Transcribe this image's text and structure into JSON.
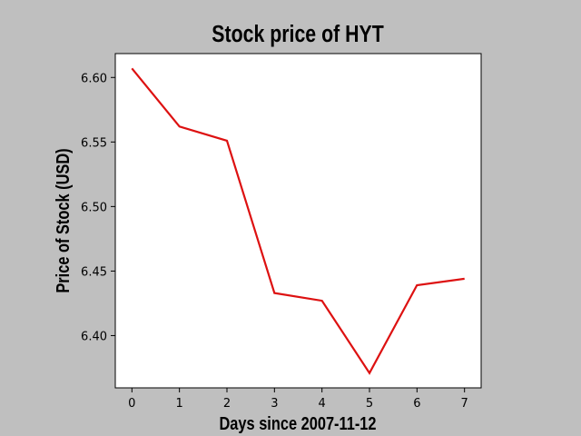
{
  "chart_data": {
    "type": "line",
    "title": "Stock price of HYT",
    "xlabel": "Days since 2007-11-12",
    "ylabel": "Price of Stock (USD)",
    "x": [
      0,
      1,
      2,
      3,
      4,
      5,
      6,
      7
    ],
    "series": [
      {
        "values": [
          6.607,
          6.562,
          6.551,
          6.433,
          6.427,
          6.371,
          6.439,
          6.444
        ],
        "color": "#dd1111"
      }
    ],
    "xticks": [
      0,
      1,
      2,
      3,
      4,
      5,
      6,
      7
    ],
    "xtick_labels": [
      "0",
      "1",
      "2",
      "3",
      "4",
      "5",
      "6",
      "7"
    ],
    "yticks": [
      6.4,
      6.45,
      6.5,
      6.55,
      6.6
    ],
    "ytick_labels": [
      "6.40",
      "6.45",
      "6.50",
      "6.55",
      "6.60"
    ],
    "xlim": [
      -0.35,
      7.35
    ],
    "ylim": [
      6.3595,
      6.6185
    ],
    "grid": false,
    "background_color": "#bfbfbf",
    "plot_background_color": "#ffffff"
  }
}
